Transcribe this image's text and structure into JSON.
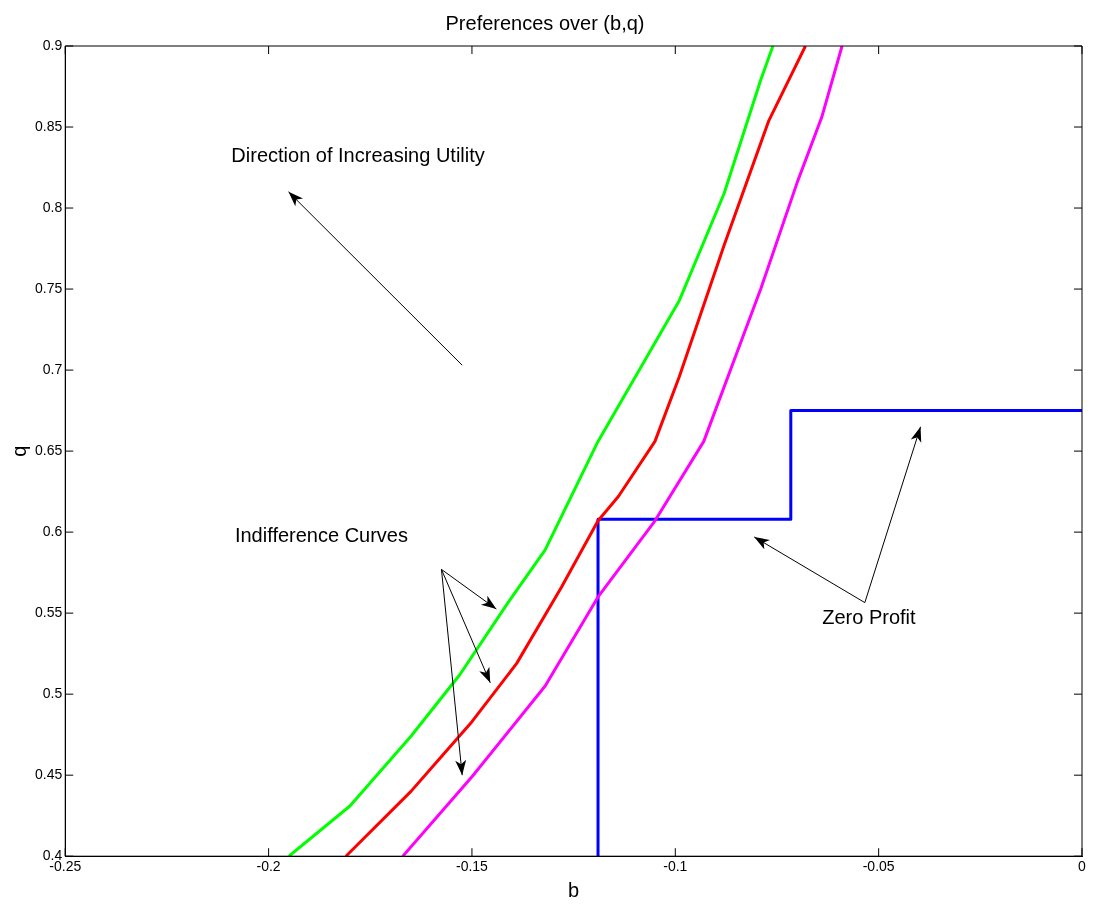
{
  "chart_data": {
    "type": "line",
    "title": "Preferences over (b,q)",
    "xlabel": "b",
    "ylabel": "q",
    "xlim": [
      -0.25,
      0
    ],
    "xticks": [
      -0.25,
      -0.2,
      -0.15,
      -0.1,
      -0.05,
      0
    ],
    "ylim": [
      0.4,
      0.9
    ],
    "yticks": [
      0.4,
      0.45,
      0.5,
      0.55,
      0.6,
      0.65,
      0.7,
      0.75,
      0.8,
      0.85,
      0.9
    ],
    "grid": false,
    "legend": false,
    "marker": "none",
    "line_style": "solid",
    "series": [
      {
        "color": "#00ff00",
        "x": [
          -0.195,
          -0.18,
          -0.165,
          -0.153,
          -0.141,
          -0.132,
          -0.119,
          -0.099,
          -0.088,
          -0.079,
          -0.076
        ],
        "values": [
          0.4,
          0.431,
          0.474,
          0.512,
          0.557,
          0.589,
          0.656,
          0.743,
          0.809,
          0.879,
          0.9
        ]
      },
      {
        "color": "#ff0000",
        "x": [
          -0.181,
          -0.165,
          -0.15,
          -0.139,
          -0.128,
          -0.119,
          -0.114,
          -0.105,
          -0.099,
          -0.088,
          -0.077,
          -0.068
        ],
        "values": [
          0.4,
          0.44,
          0.483,
          0.519,
          0.566,
          0.607,
          0.622,
          0.656,
          0.696,
          0.777,
          0.854,
          0.9
        ]
      },
      {
        "color": "#ff00ff",
        "x": [
          -0.167,
          -0.15,
          -0.132,
          -0.119,
          -0.105,
          -0.093,
          -0.079,
          -0.07,
          -0.064,
          -0.059
        ],
        "values": [
          0.4,
          0.449,
          0.505,
          0.56,
          0.607,
          0.656,
          0.75,
          0.816,
          0.856,
          0.9
        ]
      },
      {
        "color": "#0000ff",
        "x": [
          -0.119,
          -0.119,
          -0.0716,
          -0.0716,
          0
        ],
        "values": [
          0.4,
          0.608,
          0.608,
          0.675,
          0.675
        ]
      }
    ],
    "annotations": [
      "Direction of Increasing Utility",
      "Indifference Curves",
      "Zero Profit"
    ]
  }
}
